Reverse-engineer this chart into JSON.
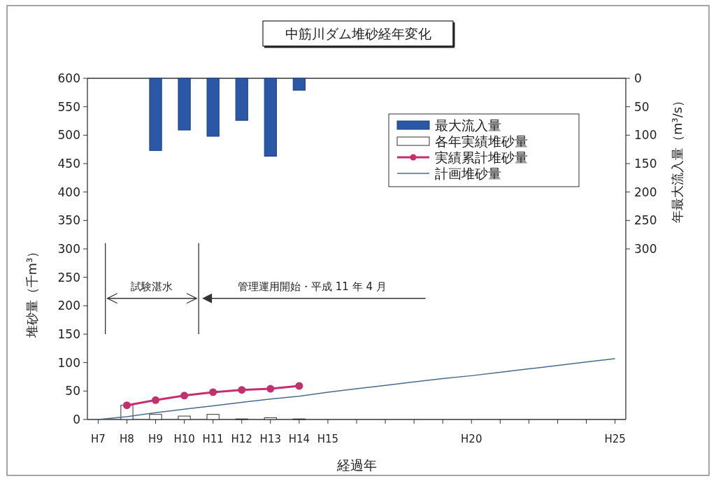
{
  "chart_data": {
    "type": "bar",
    "title": "中筋川ダム堆砂経年変化",
    "xlabel": "経過年",
    "ylabel": "堆砂量（千m³）",
    "y2label": "年最大流入量（m³/s）",
    "categories": [
      "H7",
      "H8",
      "H9",
      "H10",
      "H11",
      "H12",
      "H13",
      "H14",
      "H15",
      null,
      null,
      null,
      null,
      "H20",
      null,
      null,
      null,
      null,
      "H25"
    ],
    "ylim": [
      0,
      600
    ],
    "yticks": [
      0,
      50,
      100,
      150,
      200,
      250,
      300,
      350,
      400,
      450,
      500,
      550,
      600
    ],
    "y2lim": [
      600,
      0
    ],
    "y2ticks": [
      0,
      50,
      100,
      150,
      200,
      250,
      300
    ],
    "series": [
      {
        "name": "最大流入量",
        "axis": "y2",
        "color": "#2a57a6",
        "values": [
          null,
          null,
          127,
          91,
          102,
          74,
          137,
          21,
          null,
          null,
          null,
          null,
          null,
          null,
          null,
          null,
          null,
          null,
          null
        ]
      },
      {
        "name": "各年実績堆砂量",
        "color": "#ffffff",
        "values": [
          null,
          25,
          9,
          6,
          9,
          1,
          3,
          1,
          null,
          null,
          null,
          null,
          null,
          null,
          null,
          null,
          null,
          null,
          null
        ]
      },
      {
        "name": "実績累計堆砂量",
        "type": "line",
        "color": "#c2306e",
        "marker": "circle",
        "values": [
          null,
          25,
          34,
          42,
          48,
          52,
          54,
          59,
          null,
          null,
          null,
          null,
          null,
          null,
          null,
          null,
          null,
          null,
          null
        ]
      },
      {
        "name": "計画堆砂量",
        "type": "line",
        "color": "#4a6a8c",
        "values": [
          0,
          5,
          12,
          18,
          24,
          30,
          36,
          41,
          48,
          54,
          60,
          66,
          72,
          77,
          83,
          89,
          95,
          101,
          107
        ]
      }
    ],
    "legend": "top right",
    "annotations": [
      "試験湛水",
      "管理運用開始・平成 11 年 4 月"
    ]
  }
}
